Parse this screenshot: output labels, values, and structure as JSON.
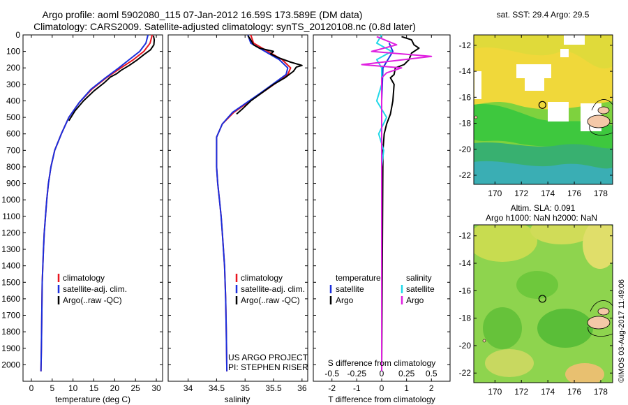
{
  "header": {
    "line1": "Argo profile: aoml 5902080_115 07-Jan-2012 16.59S 173.589E (DM data)",
    "line2": "Climatology: CARS2009. Satellite-adjusted climatology: synTS_20120108.nc (0.8d later)"
  },
  "colors": {
    "climatology": "#e8141e",
    "satellite": "#1a2edc",
    "argo": "#000000",
    "argo_salinity": "#e020e0",
    "satellite_salinity": "#20d8e8"
  },
  "chart_data": [
    {
      "type": "line",
      "name": "temperature",
      "xlabel": "temperature (deg C)",
      "ylabel": "",
      "xlim": [
        -2,
        31.5
      ],
      "ylim": [
        2100,
        0
      ],
      "xticks": [
        0,
        5,
        10,
        15,
        20,
        25,
        30
      ],
      "yticks": [
        0,
        100,
        200,
        300,
        400,
        500,
        600,
        700,
        800,
        900,
        1000,
        1100,
        1200,
        1300,
        1400,
        1500,
        1600,
        1700,
        1800,
        1900,
        2000
      ],
      "legend": [
        "climatology",
        "satellite-adj. clim.",
        "Argo(..raw -QC)"
      ],
      "series": [
        {
          "name": "climatology",
          "points": [
            [
              29,
              0
            ],
            [
              28.5,
              50
            ],
            [
              27,
              100
            ],
            [
              24.5,
              150
            ],
            [
              21.5,
              200
            ],
            [
              18,
              260
            ],
            [
              14.5,
              330
            ],
            [
              11.5,
              410
            ],
            [
              9,
              500
            ],
            [
              7.2,
              600
            ],
            [
              5.6,
              700
            ],
            [
              4.7,
              800
            ],
            [
              4.1,
              900
            ],
            [
              3.7,
              1000
            ],
            [
              3.4,
              1100
            ],
            [
              3.1,
              1200
            ],
            [
              2.9,
              1300
            ],
            [
              2.75,
              1400
            ],
            [
              2.6,
              1500
            ],
            [
              2.5,
              1700
            ],
            [
              2.4,
              1900
            ],
            [
              2.3,
              2040
            ]
          ]
        },
        {
          "name": "satellite-adj. clim.",
          "points": [
            [
              28,
              0
            ],
            [
              27.5,
              50
            ],
            [
              26,
              100
            ],
            [
              23.5,
              150
            ],
            [
              21,
              200
            ],
            [
              17.8,
              260
            ],
            [
              14.3,
              330
            ],
            [
              11.5,
              410
            ],
            [
              9,
              500
            ],
            [
              7.2,
              600
            ],
            [
              5.6,
              700
            ],
            [
              4.7,
              800
            ],
            [
              4.1,
              900
            ],
            [
              3.7,
              1000
            ],
            [
              3.4,
              1100
            ],
            [
              3.1,
              1200
            ],
            [
              2.9,
              1300
            ],
            [
              2.75,
              1400
            ],
            [
              2.6,
              1500
            ],
            [
              2.5,
              1700
            ],
            [
              2.4,
              1900
            ],
            [
              2.3,
              2040
            ]
          ]
        },
        {
          "name": "Argo(..raw -QC)",
          "points": [
            [
              29.3,
              5
            ],
            [
              29.5,
              30
            ],
            [
              29.4,
              60
            ],
            [
              28.6,
              90
            ],
            [
              27,
              120
            ],
            [
              25.5,
              150
            ],
            [
              23.5,
              185
            ],
            [
              21.5,
              215
            ],
            [
              20.5,
              235
            ],
            [
              19,
              255
            ],
            [
              17.5,
              290
            ],
            [
              15,
              340
            ],
            [
              12.5,
              400
            ],
            [
              10.5,
              460
            ],
            [
              9,
              520
            ]
          ]
        }
      ]
    },
    {
      "type": "line",
      "name": "salinity",
      "xlabel": "salinity",
      "xlim": [
        33.65,
        36.1
      ],
      "ylim": [
        2100,
        0
      ],
      "xticks": [
        34,
        34.5,
        35,
        35.5,
        36
      ],
      "legend": [
        "climatology",
        "satellite-adj. clim.",
        "Argo(..raw -QC)"
      ],
      "annotation": [
        "US ARGO PROJECT",
        "PI: STEPHEN RISER"
      ],
      "series": [
        {
          "name": "climatology",
          "points": [
            [
              35.1,
              0
            ],
            [
              35.15,
              50
            ],
            [
              35.4,
              100
            ],
            [
              35.65,
              150
            ],
            [
              35.8,
              200
            ],
            [
              35.75,
              240
            ],
            [
              35.55,
              290
            ],
            [
              35.3,
              350
            ],
            [
              35.05,
              410
            ],
            [
              34.8,
              470
            ],
            [
              34.6,
              540
            ],
            [
              34.5,
              620
            ],
            [
              34.5,
              700
            ],
            [
              34.5,
              800
            ],
            [
              34.52,
              900
            ],
            [
              34.55,
              1000
            ],
            [
              34.58,
              1100
            ],
            [
              34.6,
              1200
            ],
            [
              34.62,
              1300
            ],
            [
              34.64,
              1400
            ],
            [
              34.66,
              1600
            ],
            [
              34.67,
              1800
            ],
            [
              34.68,
              2040
            ]
          ]
        },
        {
          "name": "satellite-adj. clim.",
          "points": [
            [
              35.05,
              0
            ],
            [
              35.1,
              50
            ],
            [
              35.35,
              100
            ],
            [
              35.6,
              150
            ],
            [
              35.75,
              200
            ],
            [
              35.72,
              240
            ],
            [
              35.52,
              290
            ],
            [
              35.28,
              350
            ],
            [
              35.03,
              410
            ],
            [
              34.78,
              470
            ],
            [
              34.6,
              540
            ],
            [
              34.5,
              620
            ],
            [
              34.5,
              700
            ],
            [
              34.5,
              800
            ],
            [
              34.52,
              900
            ],
            [
              34.55,
              1000
            ],
            [
              34.58,
              1100
            ],
            [
              34.6,
              1200
            ],
            [
              34.62,
              1300
            ],
            [
              34.64,
              1400
            ],
            [
              34.66,
              1600
            ],
            [
              34.67,
              1800
            ],
            [
              34.68,
              2040
            ]
          ]
        },
        {
          "name": "Argo(..raw -QC)",
          "points": [
            [
              35.05,
              5
            ],
            [
              35.1,
              30
            ],
            [
              35.15,
              60
            ],
            [
              35.25,
              80
            ],
            [
              35.5,
              100
            ],
            [
              35.45,
              115
            ],
            [
              35.6,
              140
            ],
            [
              35.8,
              165
            ],
            [
              36.0,
              185
            ],
            [
              35.9,
              195
            ],
            [
              35.85,
              220
            ],
            [
              35.7,
              260
            ],
            [
              35.5,
              300
            ],
            [
              35.3,
              350
            ],
            [
              35.1,
              400
            ],
            [
              34.95,
              450
            ],
            [
              34.85,
              480
            ]
          ]
        }
      ]
    },
    {
      "type": "line",
      "name": "difference",
      "xlabel": "T difference from climatology",
      "xlabel_top": "S difference from climatology",
      "xlim": [
        -2.75,
        2.75
      ],
      "ylim": [
        2100,
        0
      ],
      "xticks": [
        -2,
        -1,
        0,
        1,
        2
      ],
      "xticks_top": [
        "-0.5",
        "-0.25",
        "0",
        "0.25",
        "0.5"
      ],
      "legend": [
        "temperature",
        "satellite",
        "Argo",
        "salinity",
        "satellite",
        "Argo"
      ],
      "series": [
        {
          "name": "T satellite",
          "points": [
            [
              0.3,
              50
            ],
            [
              0.45,
              100
            ],
            [
              0.25,
              150
            ],
            [
              0.05,
              200
            ],
            [
              0,
              400
            ],
            [
              0,
              800
            ],
            [
              0,
              1200
            ],
            [
              0,
              1600
            ],
            [
              0,
              2040
            ]
          ]
        },
        {
          "name": "T Argo",
          "points": [
            [
              0.8,
              10
            ],
            [
              1.2,
              30
            ],
            [
              1.3,
              60
            ],
            [
              1.5,
              80
            ],
            [
              1.2,
              110
            ],
            [
              1.1,
              150
            ],
            [
              0.9,
              180
            ],
            [
              0.55,
              200
            ],
            [
              0.5,
              240
            ],
            [
              0.35,
              260
            ],
            [
              0.5,
              300
            ],
            [
              0.45,
              400
            ],
            [
              0.35,
              480
            ],
            [
              0.2,
              540
            ],
            [
              0.1,
              600
            ],
            [
              0.05,
              700
            ],
            [
              0,
              2040
            ]
          ]
        },
        {
          "name": "S satellite",
          "points": [
            [
              0,
              0
            ],
            [
              -0.05,
              50
            ],
            [
              0.1,
              100
            ],
            [
              -0.05,
              150
            ],
            [
              0,
              200
            ],
            [
              0,
              300
            ],
            [
              -0.05,
              400
            ],
            [
              0.05,
              500
            ],
            [
              -0.03,
              600
            ],
            [
              0.02,
              700
            ],
            [
              0,
              800
            ],
            [
              0,
              1200
            ],
            [
              0,
              1600
            ],
            [
              0,
              2040
            ]
          ]
        },
        {
          "name": "S Argo",
          "points": [
            [
              -0.05,
              10
            ],
            [
              0.15,
              60
            ],
            [
              -0.1,
              100
            ],
            [
              0.5,
              130
            ],
            [
              -0.2,
              180
            ],
            [
              0.2,
              200
            ],
            [
              0.05,
              230
            ],
            [
              0,
              260
            ],
            [
              0,
              2040
            ]
          ]
        }
      ]
    },
    {
      "type": "heatmap",
      "name": "sst-map",
      "title": "sat. SST: 29.4  Argo: 29.5",
      "xlim": [
        168.4,
        178.9
      ],
      "ylim": [
        -22.7,
        -11.2
      ],
      "xticks": [
        170,
        172,
        174,
        176,
        178
      ],
      "yticks": [
        -12,
        -14,
        -16,
        -18,
        -20,
        -22
      ],
      "marker": [
        173.589,
        -16.59
      ]
    },
    {
      "type": "heatmap",
      "name": "sla-map",
      "title1": "Altim. SLA: 0.091",
      "title2": "Argo h1000: NaN h2000: NaN",
      "xlim": [
        168.4,
        178.9
      ],
      "ylim": [
        -22.7,
        -11.2
      ],
      "xticks": [
        170,
        172,
        174,
        176,
        178
      ],
      "yticks": [
        -12,
        -14,
        -16,
        -18,
        -20,
        -22
      ],
      "marker": [
        173.589,
        -16.59
      ]
    }
  ],
  "footer": {
    "watermark": "©IMOS 03-Aug-2017 11:49:06"
  }
}
